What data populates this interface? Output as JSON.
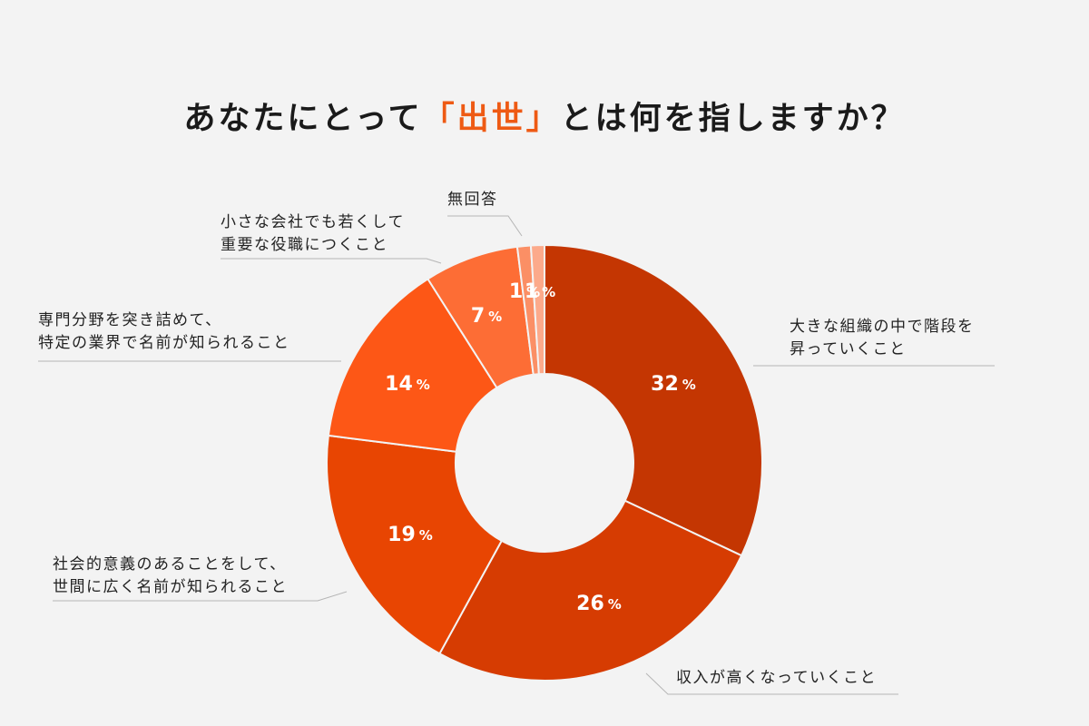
{
  "title": {
    "before": "あなたにとって",
    "highlight": "「出世」",
    "after": "とは何を指しますか？"
  },
  "chart_data": {
    "type": "pie",
    "donut": true,
    "unit": "%",
    "slices": [
      {
        "label": [
          "大きな組織の中で階段を",
          "昇っていくこと"
        ],
        "value": 32,
        "color": "#c43602"
      },
      {
        "label": [
          "収入が高くなっていくこと"
        ],
        "value": 26,
        "color": "#d63c02"
      },
      {
        "label": [
          "社会的意義のあることをして、",
          "世間に広く名前が知られること"
        ],
        "value": 19,
        "color": "#e84502"
      },
      {
        "label": [
          "専門分野を突き詰めて、",
          "特定の業界で名前が知られること"
        ],
        "value": 14,
        "color": "#fd5716"
      },
      {
        "label": [
          "小さな会社でも若くして",
          "重要な役職につくこと"
        ],
        "value": 7,
        "color": "#fd6d35"
      },
      {
        "label": [
          "無回答"
        ],
        "value": 1,
        "color": "#fb8f65"
      },
      {
        "label": [
          ""
        ],
        "value": 1,
        "color": "#fcaa8b"
      }
    ]
  }
}
